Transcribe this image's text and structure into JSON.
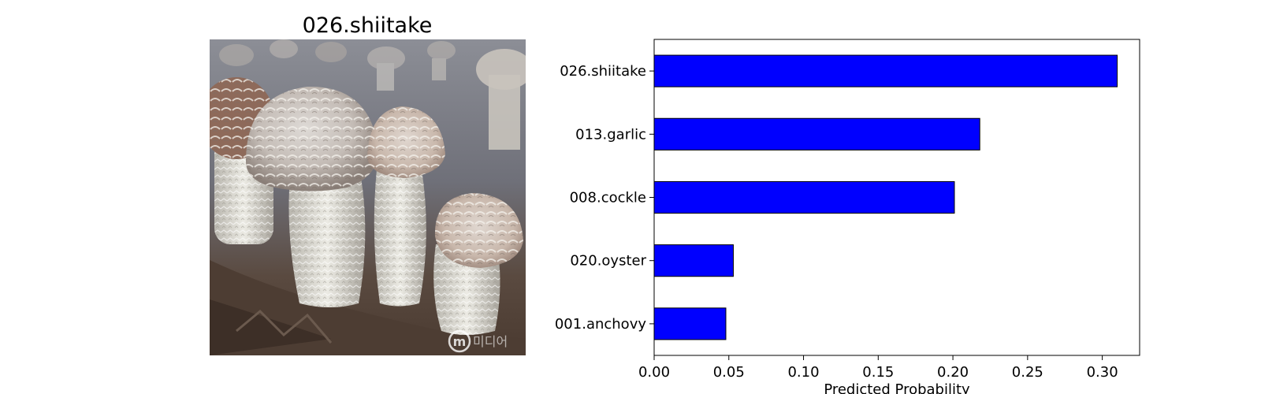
{
  "image_panel": {
    "title": "026.shiitake",
    "watermark_text": "미디어"
  },
  "chart_data": {
    "type": "bar",
    "orientation": "horizontal",
    "categories": [
      "026.shiitake",
      "013.garlic",
      "008.cockle",
      "020.oyster",
      "001.anchovy"
    ],
    "values": [
      0.31,
      0.218,
      0.201,
      0.053,
      0.048
    ],
    "xlabel": "Predicted Probability",
    "ylabel": "",
    "xlim": [
      0,
      0.325
    ],
    "xticks": [
      "0.00",
      "0.05",
      "0.10",
      "0.15",
      "0.20",
      "0.25",
      "0.30"
    ],
    "bar_color": "#0000ff",
    "bar_edge_color": "#000000",
    "grid": false,
    "legend": "none"
  }
}
